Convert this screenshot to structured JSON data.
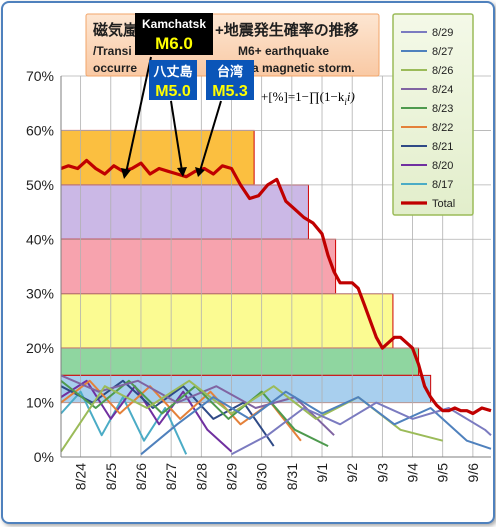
{
  "chart_data": {
    "type": "line",
    "title_lines": [
      "磁気嵐",
      "+地震発生確率の推移",
      "/Transi",
      "M6+ earthquake",
      "occurre",
      "a magnetic storm."
    ],
    "formula": "+[%]=1−∏(1−k",
    "formula_sub": "i",
    "formula_tail": "i)",
    "y_ticks": [
      "0%",
      "10%",
      "20%",
      "30%",
      "40%",
      "50%",
      "60%",
      "70%"
    ],
    "ylim": [
      0,
      70
    ],
    "x_ticks": [
      "8/24",
      "8/25",
      "8/26",
      "8/27",
      "8/28",
      "8/29",
      "8/30",
      "8/31",
      "9/1",
      "9/2",
      "9/3",
      "9/4",
      "9/5",
      "9/6"
    ],
    "xlim": [
      23.35,
      37.6
    ],
    "grid": true,
    "legend_position": "right",
    "colors": {
      "8/29": "#7b7bc0",
      "8/27": "#4f81bd",
      "8/26": "#9bbb59",
      "8/24": "#8064a2",
      "8/23": "#4e9a4e",
      "8/22": "#e4813a",
      "8/21": "#2f4a86",
      "8/20": "#7030a0",
      "8/17": "#4bacc6",
      "Total": "#c00000"
    },
    "legend": [
      {
        "name": "8/29",
        "color": "#7b7bc0"
      },
      {
        "name": "8/27",
        "color": "#4f81bd"
      },
      {
        "name": "8/26",
        "color": "#9bbb59"
      },
      {
        "name": "8/24",
        "color": "#8064a2"
      },
      {
        "name": "8/23",
        "color": "#4e9a4e"
      },
      {
        "name": "8/22",
        "color": "#e4813a"
      },
      {
        "name": "8/21",
        "color": "#2f4a86"
      },
      {
        "name": "8/20",
        "color": "#7030a0"
      },
      {
        "name": "8/17",
        "color": "#4bacc6"
      },
      {
        "name": "Total",
        "color": "#c00000"
      }
    ],
    "bands": [
      {
        "x0": 23.35,
        "x1": 29.75,
        "y0": 50,
        "y1": 60,
        "fill": "#fbbf40",
        "stroke": "#d00000"
      },
      {
        "x0": 23.35,
        "x1": 31.55,
        "y0": 40,
        "y1": 50,
        "fill": "#cbb8e6",
        "stroke": "#d00000"
      },
      {
        "x0": 23.35,
        "x1": 32.45,
        "y0": 30,
        "y1": 40,
        "fill": "#f7a3ae",
        "stroke": "#d00000"
      },
      {
        "x0": 23.35,
        "x1": 34.35,
        "y0": 20,
        "y1": 30,
        "fill": "#fbfb92",
        "stroke": "#d00000"
      },
      {
        "x0": 23.35,
        "x1": 35.2,
        "y0": 15,
        "y1": 20,
        "fill": "#8fd6a0",
        "stroke": "#d00000"
      },
      {
        "x0": 23.35,
        "x1": 35.6,
        "y0": 10,
        "y1": 15,
        "fill": "#a8cfee",
        "stroke": "#d00000"
      }
    ],
    "total": {
      "x": [
        23.35,
        23.6,
        23.9,
        24.2,
        24.5,
        24.8,
        25.1,
        25.4,
        25.7,
        26.0,
        26.3,
        26.6,
        26.9,
        27.2,
        27.5,
        27.8,
        28.1,
        28.4,
        28.7,
        29.0,
        29.3,
        29.6,
        29.9,
        30.2,
        30.5,
        30.8,
        31.1,
        31.4,
        31.7,
        32.0,
        32.2,
        32.4,
        32.6,
        32.8,
        33.0,
        33.2,
        33.4,
        33.6,
        33.8,
        34.0,
        34.2,
        34.4,
        34.6,
        34.8,
        35.0,
        35.2,
        35.4,
        35.6,
        35.8,
        36.0,
        36.2,
        36.4,
        36.6,
        36.8,
        37.0,
        37.3,
        37.6
      ],
      "y": [
        53,
        53.5,
        53,
        54.5,
        53,
        52,
        53.5,
        52.5,
        53,
        54,
        52,
        53,
        52.5,
        52,
        51.5,
        52.5,
        53,
        52,
        53.5,
        53,
        50,
        47.5,
        48,
        50,
        51,
        47,
        45.5,
        44,
        43,
        41,
        37,
        34,
        32,
        32,
        32,
        31,
        28,
        25,
        22,
        20,
        21,
        22,
        22,
        21,
        20,
        17,
        13,
        11,
        9.5,
        8.5,
        8.5,
        9,
        8.5,
        8.5,
        8,
        9,
        8.5
      ]
    },
    "daily_series": [
      {
        "name": "8/17",
        "x": [
          23.35,
          24.0,
          24.7,
          25.4,
          26.1,
          26.8,
          27.5
        ],
        "y": [
          8,
          12,
          4,
          11,
          3,
          9,
          0.5
        ]
      },
      {
        "name": "8/20",
        "x": [
          23.35,
          24.2,
          25.0,
          25.8,
          26.6,
          27.4,
          28.2,
          29.0
        ],
        "y": [
          11,
          14,
          7,
          13,
          6,
          12,
          5,
          1
        ]
      },
      {
        "name": "8/21",
        "x": [
          23.35,
          24.4,
          25.4,
          26.4,
          27.4,
          28.4,
          29.4,
          30.4
        ],
        "y": [
          13,
          10,
          14,
          9,
          13,
          7,
          10,
          2
        ]
      },
      {
        "name": "8/22",
        "x": [
          23.35,
          24.3,
          25.3,
          26.3,
          27.3,
          28.3,
          29.3,
          30.3,
          31.3
        ],
        "y": [
          10,
          14,
          8,
          13,
          7,
          12,
          6,
          10,
          3
        ]
      },
      {
        "name": "8/23",
        "x": [
          23.35,
          24.5,
          25.6,
          26.7,
          27.8,
          28.9,
          30.0,
          31.1,
          32.2
        ],
        "y": [
          14,
          9,
          14,
          8,
          13,
          7,
          12,
          5,
          2
        ]
      },
      {
        "name": "8/24",
        "x": [
          23.35,
          24.6,
          25.9,
          27.2,
          28.5,
          29.8,
          31.1,
          32.4
        ],
        "y": [
          15,
          12,
          14,
          10,
          13,
          9,
          11,
          4
        ]
      },
      {
        "name": "8/26",
        "x": [
          23.35,
          24.8,
          26.2,
          27.6,
          29.0,
          30.4,
          31.8,
          33.2,
          34.6,
          36.0
        ],
        "y": [
          1,
          13,
          9,
          14,
          8,
          13,
          7,
          11,
          5,
          3
        ]
      },
      {
        "name": "8/27",
        "x": [
          26.0,
          27.2,
          28.4,
          29.6,
          30.8,
          32.0,
          33.2,
          34.4,
          35.6,
          36.8,
          37.6
        ],
        "y": [
          0.5,
          6,
          11,
          7,
          12,
          8,
          11,
          6,
          9,
          3,
          1.5
        ]
      },
      {
        "name": "8/29",
        "x": [
          29.0,
          30.2,
          31.4,
          32.6,
          33.8,
          35.0,
          36.2,
          37.4,
          37.6
        ],
        "y": [
          0.5,
          4,
          9,
          6,
          10,
          7,
          9,
          5,
          4
        ]
      }
    ],
    "annotations": [
      {
        "region": "Kamchatsk",
        "mag": "M6.0",
        "target": [
          25.5,
          53
        ]
      },
      {
        "region": "八丈島",
        "mag": "M5.0",
        "target": [
          27.3,
          52
        ]
      },
      {
        "region": "台湾",
        "mag": "M5.3",
        "target": [
          27.6,
          52.5
        ]
      }
    ]
  }
}
